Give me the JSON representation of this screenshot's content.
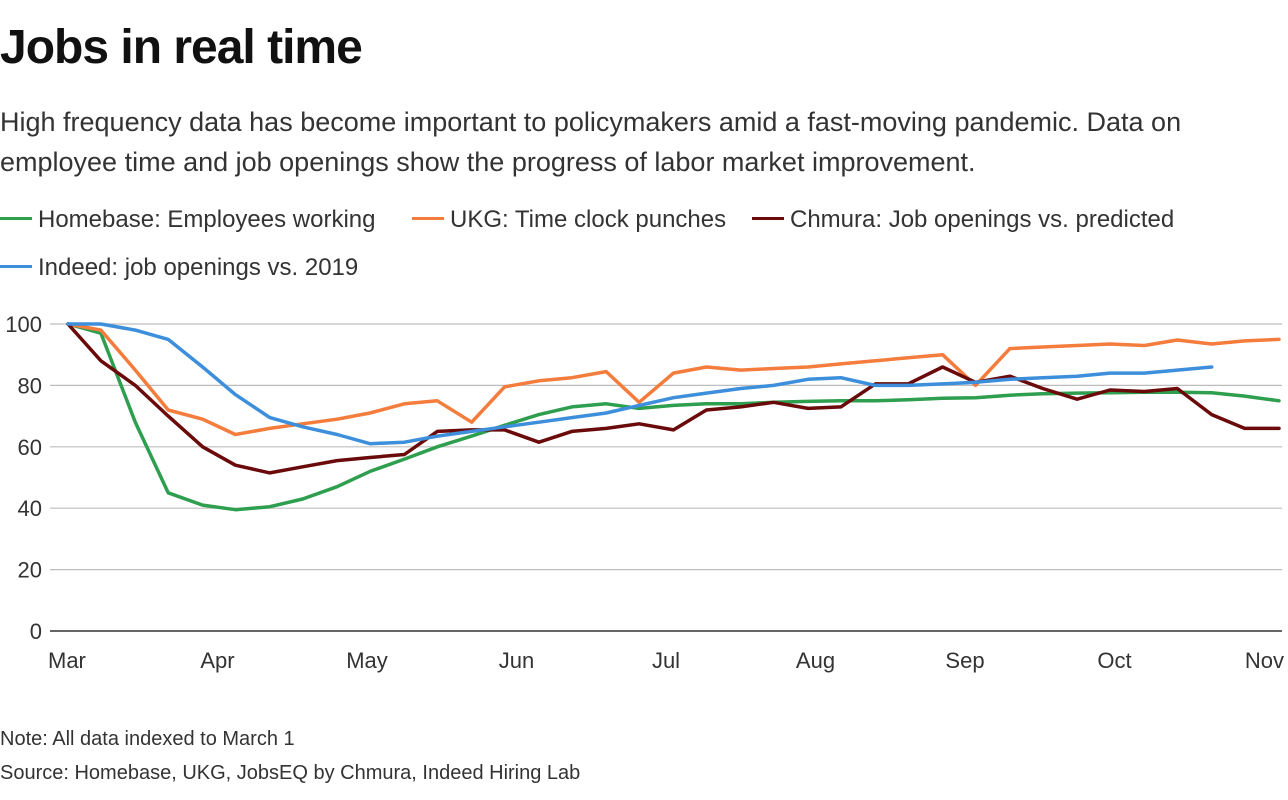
{
  "title": "Jobs in real time",
  "subtitle": "High frequency data has become important to policymakers amid a fast-moving pandemic. Data on employee time and job openings show the progress of labor market improvement.",
  "note": "Note: All data indexed to March 1",
  "source": "Source: Homebase, UKG, JobsEQ by Chmura, Indeed Hiring Lab",
  "chart_data": {
    "type": "line",
    "title": "Jobs in real time",
    "xlabel": "",
    "ylabel": "",
    "xlim": [
      0,
      8.14
    ],
    "ylim": [
      0,
      100
    ],
    "yticks": [
      0,
      20,
      40,
      60,
      80,
      100
    ],
    "ytick_labels": [
      "0",
      "20",
      "40",
      "60",
      "80",
      "100"
    ],
    "xticks": [
      0,
      1,
      2,
      3,
      4,
      5,
      6,
      7,
      8
    ],
    "xtick_labels": [
      "Mar",
      "Apr",
      "May",
      "Jun",
      "Jul",
      "Aug",
      "Sep",
      "Oct",
      "Nov"
    ],
    "grid": true,
    "legend": "top",
    "series": [
      {
        "name": "Homebase: Employees working",
        "color": "#2e9e4f",
        "x": [
          0,
          0.22,
          0.45,
          0.67,
          0.9,
          1.12,
          1.35,
          1.57,
          1.8,
          2.02,
          2.25,
          2.47,
          2.7,
          2.92,
          3.15,
          3.37,
          3.6,
          3.82,
          4.05,
          4.27,
          4.5,
          4.72,
          4.95,
          5.17,
          5.4,
          5.62,
          5.85,
          6.07,
          6.3,
          6.52,
          6.75,
          6.97,
          7.2,
          7.42,
          7.65,
          7.87,
          8.1
        ],
        "y": [
          100,
          97,
          68,
          45,
          41,
          39.5,
          40.5,
          43,
          47,
          52,
          56,
          60,
          63.5,
          67,
          70.5,
          73,
          74,
          72.5,
          73.5,
          74,
          74,
          74.5,
          74.8,
          75,
          75,
          75.3,
          75.8,
          76,
          76.8,
          77.3,
          77.5,
          77.6,
          77.8,
          77.8,
          77.6,
          76.5,
          75
        ]
      },
      {
        "name": "UKG: Time clock punches",
        "color": "#f47c3c",
        "x": [
          0,
          0.22,
          0.45,
          0.67,
          0.9,
          1.12,
          1.35,
          1.57,
          1.8,
          2.02,
          2.25,
          2.47,
          2.7,
          2.92,
          3.15,
          3.37,
          3.6,
          3.82,
          4.05,
          4.27,
          4.5,
          4.72,
          4.95,
          5.17,
          5.4,
          5.62,
          5.85,
          6.07,
          6.3,
          6.52,
          6.75,
          6.97,
          7.2,
          7.42,
          7.65,
          7.87,
          8.1
        ],
        "y": [
          100,
          98,
          85,
          72,
          69,
          64,
          66,
          67.5,
          69,
          71,
          74,
          75,
          68,
          79.5,
          81.5,
          82.5,
          84.5,
          74.5,
          84,
          86,
          85,
          85.5,
          86,
          87,
          88,
          89,
          90,
          80,
          92,
          92.5,
          93,
          93.5,
          93,
          94.8,
          93.5,
          94.5,
          95
        ]
      },
      {
        "name": "Chmura: Job openings vs. predicted",
        "color": "#6b0a0a",
        "x": [
          0,
          0.22,
          0.45,
          0.67,
          0.9,
          1.12,
          1.35,
          1.57,
          1.8,
          2.02,
          2.25,
          2.47,
          2.7,
          2.92,
          3.15,
          3.37,
          3.6,
          3.82,
          4.05,
          4.27,
          4.5,
          4.72,
          4.95,
          5.17,
          5.4,
          5.62,
          5.85,
          6.07,
          6.3,
          6.52,
          6.75,
          6.97,
          7.2,
          7.42,
          7.65,
          7.87,
          8.1
        ],
        "y": [
          100,
          88,
          80,
          70,
          60,
          54,
          51.5,
          53.5,
          55.5,
          56.5,
          57.5,
          65,
          65.5,
          65.5,
          61.5,
          65,
          66,
          67.5,
          65.5,
          72,
          73,
          74.5,
          72.5,
          73,
          80.5,
          80.5,
          86,
          81,
          83,
          79,
          75.5,
          78.5,
          78,
          79,
          70.5,
          66,
          66
        ]
      },
      {
        "name": "Indeed: job openings vs. 2019",
        "color": "#3d8fdc",
        "x": [
          0,
          0.22,
          0.45,
          0.67,
          0.9,
          1.12,
          1.35,
          1.57,
          1.8,
          2.02,
          2.25,
          2.47,
          2.7,
          2.92,
          3.15,
          3.37,
          3.6,
          3.82,
          4.05,
          4.27,
          4.5,
          4.72,
          4.95,
          5.17,
          5.4,
          5.62,
          5.85,
          6.07,
          6.3,
          6.52,
          6.75,
          6.97,
          7.2,
          7.42,
          7.65
        ],
        "y": [
          100,
          100,
          98,
          95,
          86,
          77,
          69.5,
          66.5,
          64,
          61,
          61.5,
          63.5,
          65,
          66.5,
          68,
          69.5,
          71,
          73.5,
          76,
          77.5,
          79,
          80,
          82,
          82.5,
          80,
          80,
          80.5,
          81,
          82,
          82.5,
          83,
          84,
          84,
          85,
          86
        ]
      }
    ]
  }
}
